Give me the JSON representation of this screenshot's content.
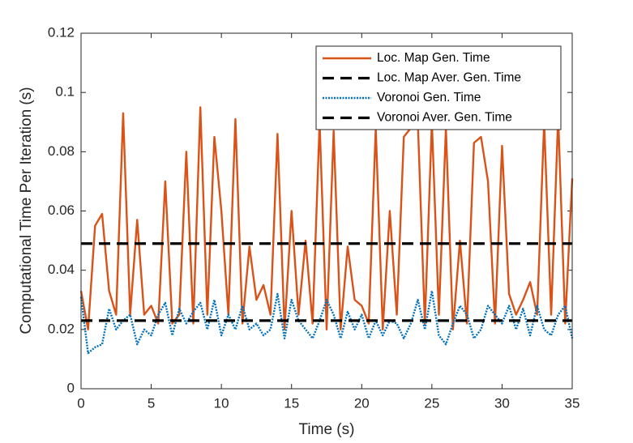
{
  "chart_data": {
    "type": "line",
    "xlabel": "Time (s)",
    "ylabel": "Computational Time Per Iteration (s)",
    "xlim": [
      0,
      35
    ],
    "ylim": [
      0,
      0.12
    ],
    "xticks": [
      0,
      5,
      10,
      15,
      20,
      25,
      30,
      35
    ],
    "yticks": [
      0,
      0.02,
      0.04,
      0.06,
      0.08,
      0.1,
      0.12
    ],
    "grid": false,
    "legend": "northeast",
    "series": [
      {
        "name": "Loc. Map Gen. Time",
        "color": "#d95319",
        "dash": "solid",
        "x": [
          0,
          0.5,
          1,
          1.5,
          2,
          2.5,
          3,
          3.5,
          4,
          4.5,
          5,
          5.5,
          6,
          6.5,
          7,
          7.5,
          8,
          8.5,
          9,
          9.5,
          10,
          10.5,
          11,
          11.5,
          12,
          12.5,
          13,
          13.5,
          14,
          14.5,
          15,
          15.5,
          16,
          16.5,
          17,
          17.5,
          18,
          18.5,
          19,
          19.5,
          20,
          20.5,
          21,
          21.5,
          22,
          22.5,
          23,
          23.5,
          24,
          24.5,
          25,
          25.5,
          26,
          26.5,
          27,
          27.5,
          28,
          28.5,
          29,
          29.5,
          30,
          30.5,
          31,
          31.5,
          32,
          32.5,
          33,
          33.5,
          34,
          34.5,
          35
        ],
        "values": [
          0.033,
          0.02,
          0.055,
          0.059,
          0.033,
          0.025,
          0.093,
          0.025,
          0.057,
          0.025,
          0.028,
          0.022,
          0.07,
          0.022,
          0.025,
          0.08,
          0.022,
          0.095,
          0.025,
          0.085,
          0.06,
          0.025,
          0.091,
          0.022,
          0.048,
          0.03,
          0.035,
          0.025,
          0.086,
          0.02,
          0.06,
          0.025,
          0.05,
          0.022,
          0.09,
          0.02,
          0.087,
          0.02,
          0.048,
          0.03,
          0.028,
          0.022,
          0.088,
          0.02,
          0.06,
          0.025,
          0.085,
          0.088,
          0.09,
          0.022,
          0.09,
          0.025,
          0.088,
          0.02,
          0.05,
          0.022,
          0.083,
          0.085,
          0.07,
          0.022,
          0.082,
          0.032,
          0.025,
          0.03,
          0.036,
          0.025,
          0.09,
          0.025,
          0.092,
          0.022,
          0.071
        ]
      },
      {
        "name": "Loc. Map Aver. Gen. Time",
        "color": "#000000",
        "dash": "dashed",
        "x": [
          0,
          35
        ],
        "values": [
          0.049,
          0.049
        ]
      },
      {
        "name": "Voronoi Gen. Time",
        "color": "#0072bd",
        "dash": "dotted",
        "x": [
          0,
          0.5,
          1,
          1.5,
          2,
          2.5,
          3,
          3.5,
          4,
          4.5,
          5,
          5.5,
          6,
          6.5,
          7,
          7.5,
          8,
          8.5,
          9,
          9.5,
          10,
          10.5,
          11,
          11.5,
          12,
          12.5,
          13,
          13.5,
          14,
          14.5,
          15,
          15.5,
          16,
          16.5,
          17,
          17.5,
          18,
          18.5,
          19,
          19.5,
          20,
          20.5,
          21,
          21.5,
          22,
          22.5,
          23,
          23.5,
          24,
          24.5,
          25,
          25.5,
          26,
          26.5,
          27,
          27.5,
          28,
          28.5,
          29,
          29.5,
          30,
          30.5,
          31,
          31.5,
          32,
          32.5,
          33,
          33.5,
          34,
          34.5,
          35
        ],
        "values": [
          0.031,
          0.012,
          0.014,
          0.015,
          0.027,
          0.02,
          0.023,
          0.025,
          0.015,
          0.02,
          0.018,
          0.025,
          0.029,
          0.018,
          0.027,
          0.022,
          0.026,
          0.029,
          0.02,
          0.03,
          0.018,
          0.025,
          0.02,
          0.028,
          0.02,
          0.022,
          0.018,
          0.02,
          0.032,
          0.017,
          0.03,
          0.023,
          0.02,
          0.017,
          0.023,
          0.03,
          0.025,
          0.017,
          0.026,
          0.02,
          0.025,
          0.017,
          0.023,
          0.018,
          0.023,
          0.022,
          0.017,
          0.022,
          0.03,
          0.02,
          0.033,
          0.018,
          0.015,
          0.022,
          0.028,
          0.025,
          0.017,
          0.02,
          0.028,
          0.025,
          0.022,
          0.028,
          0.02,
          0.027,
          0.018,
          0.028,
          0.02,
          0.018,
          0.025,
          0.028,
          0.017
        ]
      },
      {
        "name": "Voronoi Aver. Gen. Time",
        "color": "#000000",
        "dash": "dashed",
        "x": [
          0,
          35
        ],
        "values": [
          0.023,
          0.023
        ]
      }
    ]
  }
}
